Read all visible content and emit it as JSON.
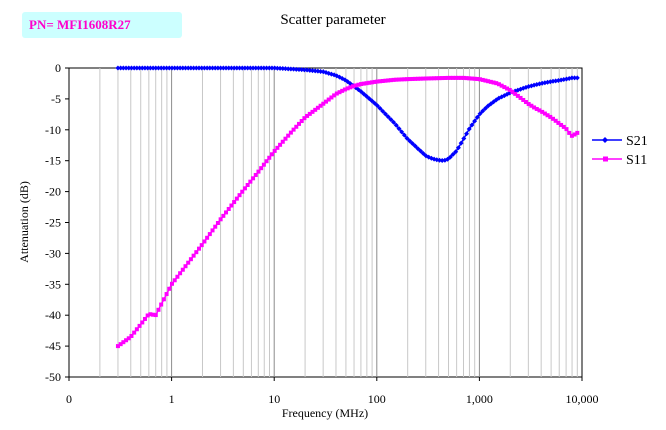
{
  "part_number": "PN= MFI1608R27",
  "chart_data": {
    "type": "scatter",
    "title": "Scatter parameter",
    "xlabel": "Frequency (MHz)",
    "ylabel": "Attenuation (dB)",
    "x_scale": "log",
    "xlim": [
      0.1,
      10000
    ],
    "ylim": [
      -50,
      0
    ],
    "x_tick_labels": [
      "0",
      "1",
      "10",
      "100",
      "1,000",
      "10,000"
    ],
    "y_ticks": [
      0,
      -5,
      -10,
      -15,
      -20,
      -25,
      -30,
      -35,
      -40,
      -45,
      -50
    ],
    "grid": "vertical log gridlines",
    "legend_position": "right",
    "series": [
      {
        "name": "S21",
        "color": "#0000ff",
        "marker": "diamond",
        "x": [
          0.3,
          0.5,
          1,
          2,
          5,
          10,
          20,
          30,
          40,
          50,
          70,
          100,
          150,
          200,
          250,
          300,
          350,
          400,
          450,
          500,
          600,
          700,
          800,
          1000,
          1200,
          1500,
          2000,
          3000,
          4000,
          5000,
          6000,
          7000,
          8000,
          9000
        ],
        "y": [
          0,
          0,
          0,
          0,
          0,
          0,
          -0.3,
          -0.6,
          -1.2,
          -2,
          -3.8,
          -6,
          -9,
          -11.5,
          -13,
          -14.2,
          -14.7,
          -14.9,
          -15,
          -14.7,
          -13.4,
          -11.5,
          -9.8,
          -7.5,
          -6.2,
          -5,
          -4,
          -3,
          -2.5,
          -2.2,
          -2,
          -1.8,
          -1.6,
          -1.6
        ]
      },
      {
        "name": "S11",
        "color": "#ff00ff",
        "marker": "square",
        "x": [
          0.3,
          0.4,
          0.5,
          0.6,
          0.7,
          1,
          2,
          3,
          5,
          7,
          10,
          15,
          20,
          30,
          40,
          50,
          60,
          70,
          100,
          150,
          200,
          300,
          500,
          700,
          1000,
          1500,
          2000,
          2500,
          3000,
          3500,
          4000,
          5000,
          5500,
          6000,
          7000,
          7500,
          8000,
          9000
        ],
        "y": [
          -45,
          -43.5,
          -41.5,
          -39.8,
          -40,
          -35,
          -28.5,
          -24.5,
          -19.8,
          -16.8,
          -13.5,
          -10.2,
          -8,
          -5.8,
          -4.2,
          -3.4,
          -2.9,
          -2.6,
          -2.2,
          -1.9,
          -1.8,
          -1.7,
          -1.6,
          -1.6,
          -1.8,
          -2.5,
          -3.6,
          -4.8,
          -5.8,
          -6.5,
          -7,
          -8,
          -8.5,
          -9,
          -9.8,
          -10.5,
          -11,
          -10.5
        ]
      }
    ]
  }
}
